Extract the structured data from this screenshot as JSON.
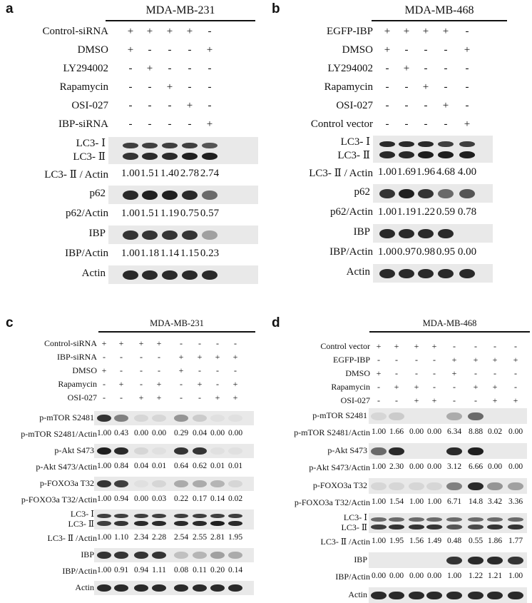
{
  "panels": [
    {
      "label": "a",
      "cell_line": "MDA-MB-231",
      "conditions": [
        {
          "name": "Control-siRNA",
          "signs": [
            "+",
            "+",
            "+",
            "+",
            "-"
          ]
        },
        {
          "name": "DMSO",
          "signs": [
            "+",
            "-",
            "-",
            "-",
            "+"
          ]
        },
        {
          "name": "LY294002",
          "signs": [
            "-",
            "+",
            "-",
            "-",
            "-"
          ]
        },
        {
          "name": "Rapamycin",
          "signs": [
            "-",
            "-",
            "+",
            "-",
            "-"
          ]
        },
        {
          "name": "OSI-027",
          "signs": [
            "-",
            "-",
            "-",
            "+",
            "-"
          ]
        },
        {
          "name": "IBP-siRNA",
          "signs": [
            "-",
            "-",
            "-",
            "-",
            "+"
          ]
        }
      ],
      "rows": [
        {
          "kind": "blot",
          "label": "LC3- Ⅰ",
          "label2": "LC3- Ⅱ",
          "double": true,
          "intensity": [
            0.8,
            0.8,
            0.8,
            0.8,
            0.7
          ],
          "intensity2": [
            0.85,
            0.9,
            0.9,
            0.95,
            0.95
          ]
        },
        {
          "kind": "quant",
          "label": "LC3- Ⅱ / Actin",
          "values": [
            "1.00",
            "1.51",
            "1.40",
            "2.78",
            "2.74"
          ]
        },
        {
          "kind": "blot",
          "label": "p62",
          "intensity": [
            0.9,
            0.95,
            0.95,
            0.9,
            0.6
          ]
        },
        {
          "kind": "quant",
          "label": "p62/Actin",
          "values": [
            "1.00",
            "1.51",
            "1.19",
            "0.75",
            "0.57"
          ]
        },
        {
          "kind": "blot",
          "label": "IBP",
          "intensity": [
            0.85,
            0.85,
            0.85,
            0.85,
            0.35
          ]
        },
        {
          "kind": "quant",
          "label": "IBP/Actin",
          "values": [
            "1.00",
            "1.18",
            "1.14",
            "1.15",
            "0.23"
          ]
        },
        {
          "kind": "blot",
          "label": "Actin",
          "intensity": [
            0.9,
            0.9,
            0.9,
            0.9,
            0.9
          ]
        }
      ]
    },
    {
      "label": "b",
      "cell_line": "MDA-MB-468",
      "conditions": [
        {
          "name": "EGFP-IBP",
          "signs": [
            "+",
            "+",
            "+",
            "+",
            "-"
          ]
        },
        {
          "name": "DMSO",
          "signs": [
            "+",
            "-",
            "-",
            "-",
            "+"
          ]
        },
        {
          "name": "LY294002",
          "signs": [
            "-",
            "+",
            "-",
            "-",
            "-"
          ]
        },
        {
          "name": "Rapamycin",
          "signs": [
            "-",
            "-",
            "+",
            "-",
            "-"
          ]
        },
        {
          "name": "OSI-027",
          "signs": [
            "-",
            "-",
            "-",
            "+",
            "-"
          ]
        },
        {
          "name": "Control vector",
          "signs": [
            "-",
            "-",
            "-",
            "-",
            "+"
          ]
        }
      ],
      "rows": [
        {
          "kind": "blot",
          "label": "LC3- Ⅰ",
          "label2": "LC3- Ⅱ",
          "double": true,
          "intensity": [
            0.9,
            0.9,
            0.9,
            0.8,
            0.8
          ],
          "intensity2": [
            0.9,
            0.9,
            0.95,
            0.95,
            0.95
          ]
        },
        {
          "kind": "quant",
          "label": "LC3- Ⅱ / Actin",
          "values": [
            "1.00",
            "1.69",
            "1.96",
            "4.68",
            "4.00"
          ]
        },
        {
          "kind": "blot",
          "label": "p62",
          "intensity": [
            0.85,
            0.95,
            0.85,
            0.6,
            0.7
          ]
        },
        {
          "kind": "quant",
          "label": "p62/Actin",
          "values": [
            "1.00",
            "1.19",
            "1.22",
            "0.59",
            "0.78"
          ]
        },
        {
          "kind": "blot",
          "label": "IBP",
          "intensity": [
            0.9,
            0.9,
            0.9,
            0.9,
            0.0
          ]
        },
        {
          "kind": "quant",
          "label": "IBP/Actin",
          "values": [
            "1.00",
            "0.97",
            "0.98",
            "0.95",
            "0.00"
          ]
        },
        {
          "kind": "blot",
          "label": "Actin",
          "intensity": [
            0.9,
            0.9,
            0.9,
            0.9,
            0.9
          ]
        }
      ]
    },
    {
      "label": "c",
      "cell_line": "MDA-MB-231",
      "conditions": [
        {
          "name": "Control-siRNA",
          "signs": [
            "+",
            "+",
            "+",
            "+",
            "-",
            "-",
            "-",
            "-"
          ]
        },
        {
          "name": "IBP-siRNA",
          "signs": [
            "-",
            "-",
            "-",
            "-",
            "+",
            "+",
            "+",
            "+"
          ]
        },
        {
          "name": "DMSO",
          "signs": [
            "+",
            "-",
            "-",
            "-",
            "+",
            "-",
            "-",
            "-"
          ]
        },
        {
          "name": "Rapamycin",
          "signs": [
            "-",
            "+",
            "-",
            "+",
            "-",
            "+",
            "-",
            "+"
          ]
        },
        {
          "name": "OSI-027",
          "signs": [
            "-",
            "-",
            "+",
            "+",
            "-",
            "-",
            "+",
            "+"
          ]
        }
      ],
      "rows": [
        {
          "kind": "blot",
          "label": "p-mTOR S2481",
          "intensity": [
            0.85,
            0.5,
            0.1,
            0.1,
            0.4,
            0.15,
            0.05,
            0.05
          ]
        },
        {
          "kind": "quant",
          "label": "p-mTOR S2481/Actin",
          "values": [
            "1.00",
            "0.43",
            "0.00",
            "0.00",
            "0.29",
            "0.04",
            "0.00",
            "0.00"
          ]
        },
        {
          "kind": "blot",
          "label": "p-Akt S473",
          "intensity": [
            0.95,
            0.9,
            0.1,
            0.05,
            0.85,
            0.85,
            0.05,
            0.05
          ]
        },
        {
          "kind": "quant",
          "label": "p-Akt S473/Actin",
          "values": [
            "1.00",
            "0.84",
            "0.04",
            "0.01",
            "0.64",
            "0.62",
            "0.01",
            "0.01"
          ]
        },
        {
          "kind": "blot",
          "label": "p-FOXO3a T32",
          "intensity": [
            0.85,
            0.8,
            0.05,
            0.1,
            0.3,
            0.3,
            0.25,
            0.1
          ]
        },
        {
          "kind": "quant",
          "label": "p-FOXO3a T32/Actin",
          "values": [
            "1.00",
            "0.94",
            "0.00",
            "0.03",
            "0.22",
            "0.17",
            "0.14",
            "0.02"
          ]
        },
        {
          "kind": "blot",
          "label": "LC3- Ⅰ",
          "label2": "LC3- Ⅱ",
          "double": true,
          "intensity": [
            0.8,
            0.8,
            0.8,
            0.8,
            0.8,
            0.8,
            0.8,
            0.8
          ],
          "intensity2": [
            0.8,
            0.85,
            0.9,
            0.9,
            0.9,
            0.9,
            0.95,
            0.9
          ]
        },
        {
          "kind": "quant",
          "label": "LC3- Ⅱ /Actin",
          "values": [
            "1.00",
            "1.10",
            "2.34",
            "2.28",
            "2.54",
            "2.55",
            "2.81",
            "1.95"
          ]
        },
        {
          "kind": "blot",
          "label": "IBP",
          "intensity": [
            0.85,
            0.85,
            0.85,
            0.85,
            0.2,
            0.25,
            0.35,
            0.3
          ]
        },
        {
          "kind": "quant",
          "label": "IBP/Actin",
          "values": [
            "1.00",
            "0.91",
            "0.94",
            "1.11",
            "0.08",
            "0.11",
            "0.20",
            "0.14"
          ]
        },
        {
          "kind": "blot",
          "label": "Actin",
          "intensity": [
            0.9,
            0.9,
            0.9,
            0.9,
            0.9,
            0.9,
            0.9,
            0.9
          ]
        }
      ]
    },
    {
      "label": "d",
      "cell_line": "MDA-MB-468",
      "conditions": [
        {
          "name": "Control vector",
          "signs": [
            "+",
            "+",
            "+",
            "+",
            "-",
            "-",
            "-",
            "-"
          ]
        },
        {
          "name": "EGFP-IBP",
          "signs": [
            "-",
            "-",
            "-",
            "-",
            "+",
            "+",
            "+",
            "+"
          ]
        },
        {
          "name": "DMSO",
          "signs": [
            "+",
            "-",
            "-",
            "-",
            "+",
            "-",
            "-",
            "-"
          ]
        },
        {
          "name": "Rapamycin",
          "signs": [
            "-",
            "+",
            "+",
            "-",
            "-",
            "+",
            "+",
            "-"
          ]
        },
        {
          "name": "OSI-027",
          "signs": [
            "-",
            "-",
            "+",
            "+",
            "-",
            "-",
            "+",
            "+"
          ]
        }
      ],
      "rows": [
        {
          "kind": "blot",
          "label": "p-mTOR S2481",
          "intensity": [
            0.1,
            0.15,
            0.0,
            0.0,
            0.3,
            0.6,
            0.0,
            0.0
          ]
        },
        {
          "kind": "quant",
          "label": "p-mTOR S2481/Actin",
          "values": [
            "1.00",
            "1.66",
            "0.00",
            "0.00",
            "6.34",
            "8.88",
            "0.02",
            "0.00"
          ]
        },
        {
          "kind": "blot",
          "label": "p-Akt S473",
          "intensity": [
            0.6,
            0.9,
            0.0,
            0.0,
            0.9,
            0.95,
            0.0,
            0.0
          ]
        },
        {
          "kind": "quant",
          "label": "p-Akt S473/Actin",
          "values": [
            "1.00",
            "2.30",
            "0.00",
            "0.00",
            "3.12",
            "6.66",
            "0.00",
            "0.00"
          ]
        },
        {
          "kind": "blot",
          "label": "p-FOXO3a T32",
          "intensity": [
            0.1,
            0.1,
            0.1,
            0.1,
            0.5,
            0.9,
            0.4,
            0.35
          ]
        },
        {
          "kind": "quant",
          "label": "p-FOXO3a T32/Actin",
          "values": [
            "1.00",
            "1.54",
            "1.00",
            "1.00",
            "6.71",
            "14.8",
            "3.42",
            "3.36"
          ]
        },
        {
          "kind": "blot",
          "label": "LC3- Ⅰ",
          "label2": "LC3- Ⅱ",
          "double": true,
          "intensity": [
            0.6,
            0.6,
            0.6,
            0.6,
            0.6,
            0.6,
            0.6,
            0.6
          ],
          "intensity2": [
            0.8,
            0.85,
            0.85,
            0.85,
            0.7,
            0.75,
            0.85,
            0.85
          ]
        },
        {
          "kind": "quant",
          "label": "LC3- Ⅱ /Actin",
          "values": [
            "1.00",
            "1.95",
            "1.56",
            "1.49",
            "0.48",
            "0.55",
            "1.86",
            "1.77"
          ]
        },
        {
          "kind": "blot",
          "label": "IBP",
          "intensity": [
            0.0,
            0.0,
            0.0,
            0.0,
            0.85,
            0.9,
            0.9,
            0.85
          ]
        },
        {
          "kind": "quant",
          "label": "IBP/Actin",
          "values": [
            "0.00",
            "0.00",
            "0.00",
            "0.00",
            "1.00",
            "1.22",
            "1.21",
            "1.00"
          ]
        },
        {
          "kind": "blot",
          "label": "Actin",
          "intensity": [
            0.9,
            0.9,
            0.9,
            0.9,
            0.9,
            0.9,
            0.9,
            0.9
          ]
        }
      ]
    }
  ]
}
